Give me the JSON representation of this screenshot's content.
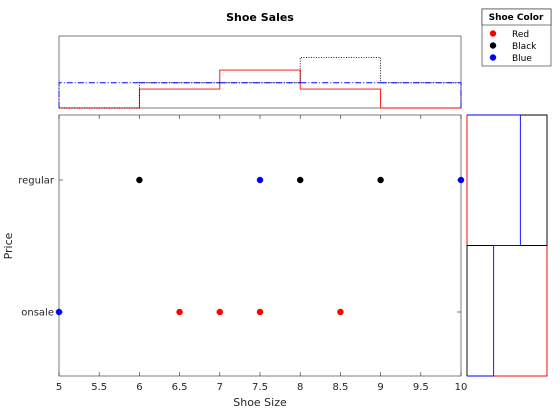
{
  "chart_data": {
    "type": "scatter",
    "title": "Shoe Sales",
    "xlabel": "Shoe Size",
    "ylabel": "Price",
    "xlim": [
      5,
      10
    ],
    "x_ticks": [
      "5",
      "5.5",
      "6",
      "6.5",
      "7",
      "7.5",
      "8",
      "8.5",
      "9",
      "9.5",
      "10"
    ],
    "y_categories": [
      "onsale",
      "regular"
    ],
    "legend": {
      "title": "Shoe Color",
      "placement": "top-right outside",
      "entries": [
        "Red",
        "Black",
        "Blue"
      ]
    },
    "colors": {
      "Red": "#ff0000",
      "Black": "#000000",
      "Blue": "#0000ff"
    },
    "series": [
      {
        "name": "Red",
        "points": [
          [
            6.5,
            "onsale"
          ],
          [
            7,
            "onsale"
          ],
          [
            7.5,
            "onsale"
          ],
          [
            8.5,
            "onsale"
          ]
        ]
      },
      {
        "name": "Black",
        "points": [
          [
            6,
            "regular"
          ],
          [
            8,
            "regular"
          ],
          [
            9,
            "regular"
          ]
        ]
      },
      {
        "name": "Blue",
        "points": [
          [
            5,
            "onsale"
          ],
          [
            7.5,
            "regular"
          ],
          [
            10,
            "regular"
          ]
        ]
      }
    ],
    "marginal_x_histograms": {
      "bin_edges": [
        5,
        6,
        7,
        8,
        9,
        10
      ],
      "series": [
        {
          "name": "Red",
          "style": "solid",
          "values": [
            0,
            0.25,
            0.5,
            0.25,
            0
          ]
        },
        {
          "name": "Black",
          "style": "dotted",
          "values": [
            0,
            0.333,
            0.333,
            0.667,
            0.333
          ]
        },
        {
          "name": "Blue",
          "style": "dash-dot",
          "values": [
            0.333,
            0.333,
            0.333,
            0.333,
            0.333
          ]
        }
      ]
    },
    "marginal_y_histograms": {
      "series": [
        {
          "name": "Red",
          "style": "solid",
          "values": {
            "onsale": 1.0,
            "regular": 0
          }
        },
        {
          "name": "Black",
          "style": "solid",
          "values": {
            "onsale": 0,
            "regular": 1.0
          }
        },
        {
          "name": "Blue",
          "style": "solid",
          "values": {
            "onsale": 0.333,
            "regular": 0.667
          }
        }
      ]
    }
  }
}
